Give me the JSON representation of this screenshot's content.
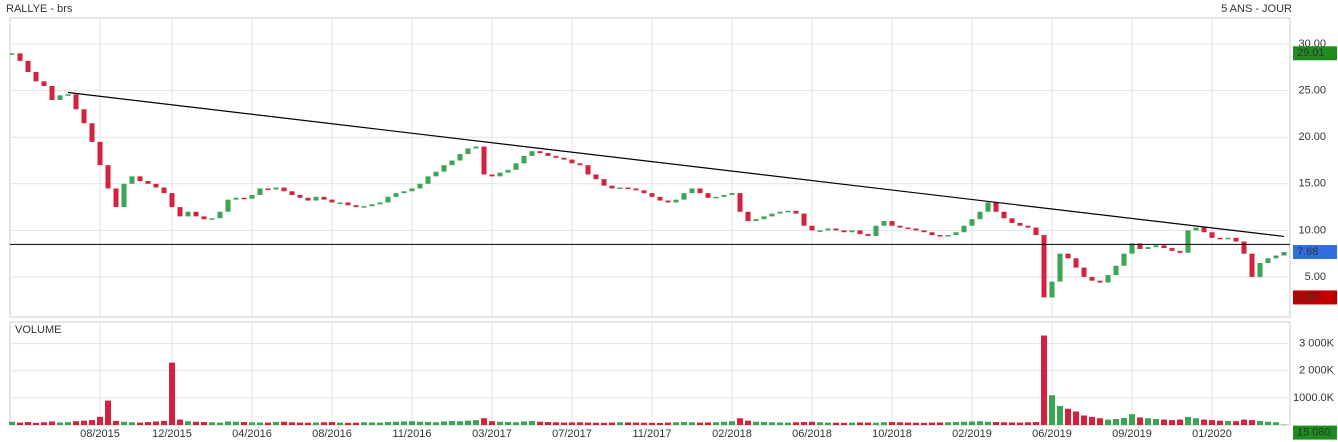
{
  "chart_data": [
    {
      "type": "candle",
      "title": "RALLYE - brs",
      "subtitle": "5 ANS - JOUR",
      "categories": [
        null,
        null,
        null,
        null,
        null,
        null,
        null,
        null,
        null,
        null,
        null,
        "08/2015",
        null,
        null,
        null,
        null,
        null,
        null,
        null,
        null,
        "12/2015",
        null,
        null,
        null,
        null,
        null,
        null,
        null,
        null,
        null,
        "04/2016",
        null,
        null,
        null,
        null,
        null,
        null,
        null,
        null,
        null,
        "08/2016",
        null,
        null,
        null,
        null,
        null,
        null,
        null,
        null,
        null,
        "11/2016",
        null,
        null,
        null,
        null,
        null,
        null,
        null,
        null,
        null,
        "03/2017",
        null,
        null,
        null,
        null,
        null,
        null,
        null,
        null,
        null,
        "07/2017",
        null,
        null,
        null,
        null,
        null,
        null,
        null,
        null,
        null,
        "11/2017",
        null,
        null,
        null,
        null,
        null,
        null,
        null,
        null,
        null,
        "02/2018",
        null,
        null,
        null,
        null,
        null,
        null,
        null,
        null,
        null,
        "06/2018",
        null,
        null,
        null,
        null,
        null,
        null,
        null,
        null,
        null,
        "10/2018",
        null,
        null,
        null,
        null,
        null,
        null,
        null,
        null,
        null,
        "02/2019",
        null,
        null,
        null,
        null,
        null,
        null,
        null,
        null,
        null,
        "06/2019",
        null,
        null,
        null,
        null,
        null,
        null,
        null,
        null,
        null,
        "09/2019",
        null,
        null,
        null,
        null,
        null,
        null,
        null,
        null,
        null,
        "01/2020",
        null,
        null,
        null,
        null,
        null,
        null,
        null,
        null,
        null
      ],
      "values": [
        29.01,
        28.2,
        27,
        26,
        25.5,
        24,
        24.5,
        24.6,
        23,
        21.5,
        19.5,
        17,
        14.5,
        12.5,
        15,
        15.8,
        15.3,
        15,
        14.6,
        14,
        12.5,
        11.5,
        12,
        11.5,
        11.2,
        11.3,
        12,
        13.3,
        13.5,
        13.4,
        13.8,
        14.5,
        14.4,
        14.6,
        14.2,
        13.8,
        13.5,
        13.2,
        13.6,
        13.3,
        13,
        13,
        12.7,
        12.5,
        12.6,
        12.8,
        13,
        13.6,
        14,
        14.2,
        14.5,
        15,
        15.8,
        16.3,
        17,
        17.5,
        18.2,
        18.8,
        19,
        16,
        15.8,
        16.2,
        16.5,
        17.2,
        18,
        18.5,
        18.3,
        18,
        17.8,
        17.6,
        17.2,
        17,
        16,
        15.5,
        14.8,
        14.5,
        14.6,
        14.5,
        14.3,
        14,
        13.6,
        13.2,
        13,
        13.3,
        14,
        14.5,
        14,
        13.5,
        13.6,
        13.8,
        14,
        12,
        11,
        11.2,
        11.5,
        11.8,
        12,
        12.1,
        11.8,
        10.5,
        10,
        10,
        10.2,
        10,
        9.8,
        10,
        9.6,
        9.4,
        10.5,
        11,
        10.5,
        10.3,
        10.2,
        10,
        9.8,
        9.5,
        9.4,
        9.5,
        9.8,
        10.5,
        11.2,
        12,
        13,
        12,
        11.3,
        10.8,
        10.5,
        10.3,
        9.5,
        2.8,
        4.5,
        7.5,
        7,
        6,
        5,
        4.6,
        4.4,
        5.2,
        6.2,
        7.5,
        8.6,
        8,
        8.2,
        8.4,
        8.1,
        7.8,
        7.6,
        10,
        10.3,
        9.8,
        9.2,
        9.1,
        9.2,
        8.8,
        7.5,
        5,
        6.5,
        7,
        7.3,
        7.68
      ],
      "up_color": "#3aa655",
      "down_color": "#d6213e",
      "ylim": [
        0.7,
        32.8
      ],
      "yticks": [
        {
          "value": 5,
          "label": "5.00"
        },
        {
          "value": 10,
          "label": "10.00"
        },
        {
          "value": 15,
          "label": "15.00"
        },
        {
          "value": 20,
          "label": "20.00"
        },
        {
          "value": 25,
          "label": "25.00"
        },
        {
          "value": 30,
          "label": "30.00"
        }
      ],
      "grid": true,
      "hline": 8.5,
      "trendline": {
        "x": [
          7,
          159
        ],
        "values": [
          24.8,
          9.35
        ]
      },
      "badges": [
        {
          "value": 29.01,
          "label": "29.01",
          "color": "#1e8c1e"
        },
        {
          "value": 7.68,
          "label": "7.68",
          "color": "#2f6fe0"
        },
        {
          "value": 2.8,
          "label": "2.80",
          "color": "#c00000"
        }
      ]
    },
    {
      "type": "volume",
      "title": "VOLUME",
      "title_color": "#3aa655",
      "values": [
        120,
        90,
        110,
        80,
        100,
        130,
        95,
        105,
        140,
        160,
        180,
        300,
        900,
        150,
        120,
        100,
        90,
        110,
        130,
        150,
        2300,
        200,
        140,
        120,
        110,
        100,
        90,
        130,
        120,
        110,
        100,
        95,
        90,
        110,
        120,
        100,
        90,
        85,
        95,
        100,
        110,
        90,
        80,
        85,
        100,
        95,
        90,
        110,
        120,
        130,
        140,
        120,
        110,
        100,
        130,
        150,
        140,
        160,
        180,
        250,
        140,
        120,
        110,
        100,
        130,
        150,
        120,
        110,
        100,
        90,
        95,
        100,
        90,
        85,
        80,
        90,
        100,
        95,
        90,
        85,
        80,
        75,
        90,
        100,
        110,
        100,
        90,
        95,
        100,
        120,
        140,
        250,
        160,
        120,
        110,
        100,
        95,
        90,
        100,
        110,
        120,
        100,
        90,
        85,
        80,
        90,
        95,
        90,
        85,
        100,
        110,
        100,
        90,
        85,
        80,
        90,
        95,
        100,
        110,
        120,
        130,
        140,
        120,
        110,
        100,
        95,
        90,
        100,
        110,
        3300,
        1100,
        700,
        600,
        500,
        350,
        300,
        250,
        200,
        220,
        260,
        400,
        280,
        250,
        220,
        200,
        180,
        200,
        300,
        250,
        200,
        180,
        160,
        150,
        140,
        200,
        180,
        150,
        120,
        100,
        15.08
      ],
      "last_badge": {
        "value": 15.08,
        "label": "15 080",
        "color": "#1e8c1e"
      },
      "ylim": [
        0,
        3800
      ],
      "yticks": [
        {
          "value": 1000,
          "label": "1000.0K"
        },
        {
          "value": 2000,
          "label": "2 000K"
        },
        {
          "value": 3000,
          "label": "3 000K"
        }
      ]
    }
  ]
}
